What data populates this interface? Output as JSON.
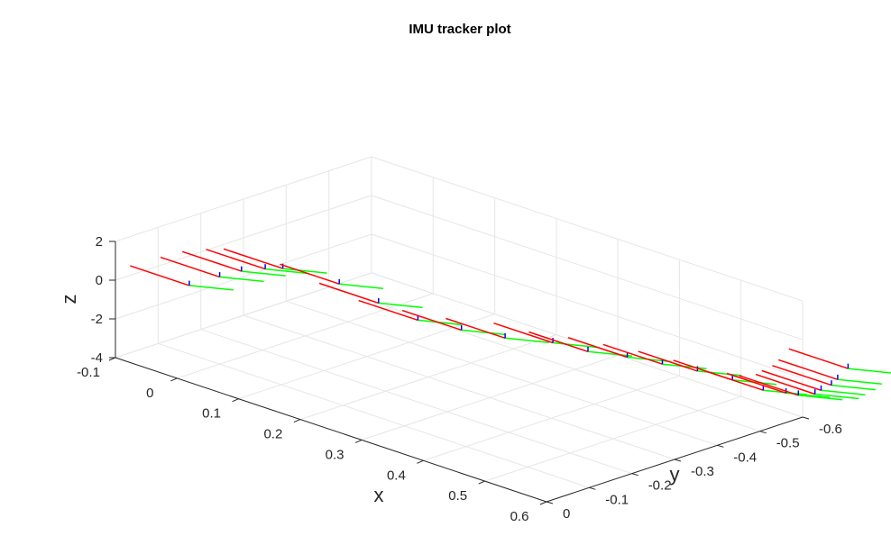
{
  "chart_data": {
    "type": "3d-quiver",
    "title": "IMU tracker plot",
    "xlabel": "x",
    "ylabel": "y",
    "zlabel": "z",
    "xlim": [
      -0.1,
      0.6
    ],
    "ylim": [
      -0.6,
      0
    ],
    "zlim": [
      -4,
      2
    ],
    "xticks": [
      "-0.1",
      "0",
      "0.1",
      "0.2",
      "0.3",
      "0.4",
      "0.5",
      "0.6"
    ],
    "yticks": [
      "0",
      "-0.1",
      "-0.2",
      "-0.3",
      "-0.4",
      "-0.5",
      "-0.6"
    ],
    "zticks": [
      "2",
      "0",
      "-2",
      "-4"
    ],
    "grid": true,
    "axis_colors": {
      "x_axis_arrow": "#ff0000",
      "y_axis_arrow": "#00ff00",
      "z_axis_arrow": "#0000ff"
    },
    "frames": [
      [
        0.02,
        0.0,
        1.0
      ],
      [
        0.0,
        -0.1,
        0.5
      ],
      [
        -0.02,
        -0.18,
        0.0
      ],
      [
        -0.03,
        -0.25,
        -0.5
      ],
      [
        -0.05,
        -0.32,
        -1.2
      ],
      [
        0.0,
        -0.38,
        -1.9
      ],
      [
        0.05,
        -0.4,
        -2.5
      ],
      [
        0.1,
        -0.42,
        -3.0
      ],
      [
        0.15,
        -0.45,
        -3.2
      ],
      [
        0.2,
        -0.48,
        -3.3
      ],
      [
        0.25,
        -0.52,
        -3.3
      ],
      [
        0.3,
        -0.53,
        -3.3
      ],
      [
        0.35,
        -0.55,
        -3.2
      ],
      [
        0.4,
        -0.56,
        -3.1
      ],
      [
        0.45,
        -0.57,
        -3.0
      ],
      [
        0.5,
        -0.58,
        -3.0
      ],
      [
        0.55,
        -0.58,
        -3.0
      ],
      [
        0.58,
        -0.59,
        -2.9
      ],
      [
        0.6,
        -0.59,
        -2.8
      ],
      [
        0.62,
        -0.6,
        -2.6
      ],
      [
        0.63,
        -0.6,
        -2.3
      ],
      [
        0.64,
        -0.61,
        -2.0
      ],
      [
        0.65,
        -0.61,
        -1.6
      ],
      [
        0.66,
        -0.62,
        -1.0
      ]
    ]
  }
}
